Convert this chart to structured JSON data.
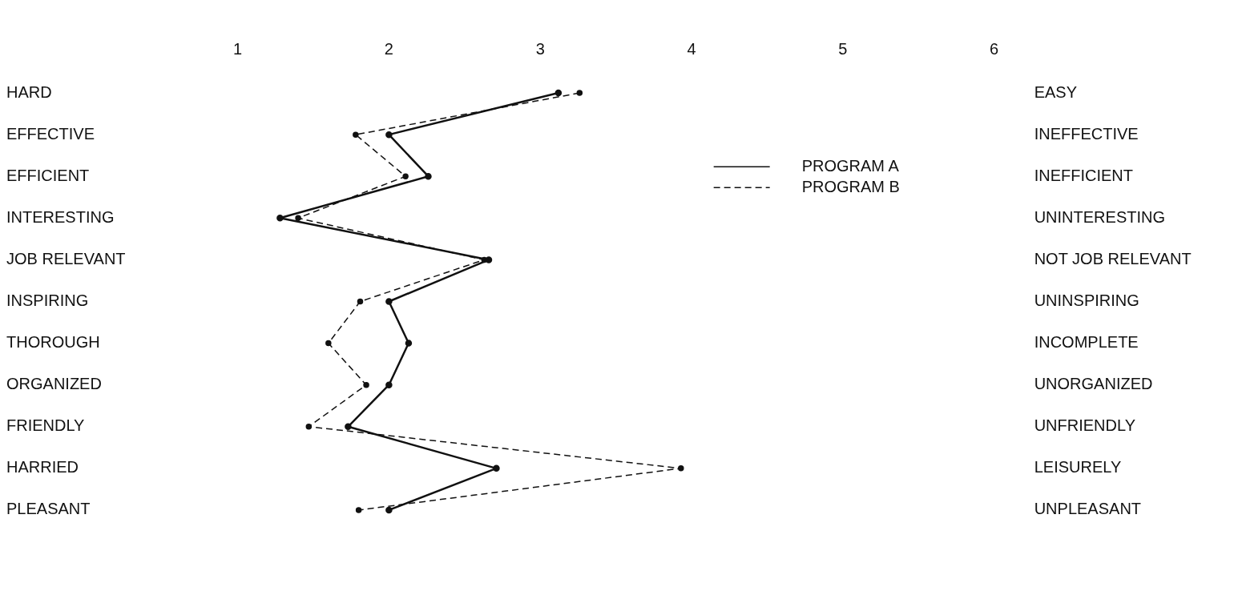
{
  "chart_data": {
    "type": "line",
    "orientation": "horizontal",
    "categories": [
      "HARD",
      "EFFECTIVE",
      "EFFICIENT",
      "INTERESTING",
      "JOB RELEVANT",
      "INSPIRING",
      "THOROUGH",
      "ORGANIZED",
      "FRIENDLY",
      "HARRIED",
      "PLEASANT"
    ],
    "y2_categories": [
      "EASY",
      "INEFFECTIVE",
      "INEFFICIENT",
      "UNINTERESTING",
      "NOT JOB RELEVANT",
      "UNINSPIRING",
      "INCOMPLETE",
      "UNORGANIZED",
      "UNFRIENDLY",
      "LEISURELY",
      "UNPLEASANT"
    ],
    "series": [
      {
        "name": "PROGRAM A",
        "color": "#111111",
        "line_style": "solid",
        "values": [
          3.12,
          2.0,
          2.26,
          1.28,
          2.66,
          2.0,
          2.13,
          2.0,
          1.73,
          2.71,
          2.0
        ]
      },
      {
        "name": "PROGRAM B",
        "color": "#111111",
        "line_style": "dashed",
        "values": [
          3.26,
          1.78,
          2.11,
          1.4,
          2.63,
          1.81,
          1.6,
          1.85,
          1.47,
          3.93,
          1.8
        ]
      }
    ],
    "xlim": [
      1,
      6
    ],
    "xticks": [
      1,
      2,
      3,
      4,
      5,
      6
    ],
    "grid": false,
    "legend": "top right",
    "marker": "circle"
  }
}
